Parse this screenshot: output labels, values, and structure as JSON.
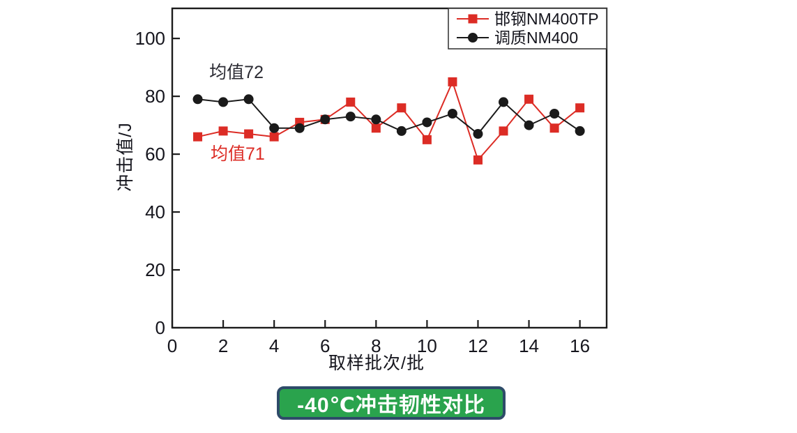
{
  "figure": {
    "badge": {
      "label": "-40℃冲击韧性对比",
      "bg_color": "#2aa34d",
      "border_color": "#2e4b69",
      "text_color": "#ffffff"
    }
  },
  "chart_data": {
    "type": "line",
    "title": "",
    "xlabel": "取样批次/批",
    "ylabel": "冲击值/J",
    "x": [
      1,
      2,
      3,
      4,
      5,
      6,
      7,
      8,
      9,
      10,
      11,
      12,
      13,
      14,
      15,
      16
    ],
    "series": [
      {
        "name": "邯钢NM400TP",
        "marker": "square",
        "color": "#dc2c25",
        "values": [
          66,
          68,
          67,
          66,
          71,
          72,
          78,
          69,
          76,
          65,
          85,
          58,
          68,
          79,
          69,
          76
        ],
        "mean": 71
      },
      {
        "name": "调质NM400",
        "marker": "circle",
        "color": "#1a1a1a",
        "values": [
          79,
          78,
          79,
          69,
          69,
          72,
          73,
          72,
          68,
          71,
          74,
          67,
          78,
          70,
          74,
          68
        ],
        "mean": 72
      }
    ],
    "xticks": [
      0,
      2,
      4,
      6,
      8,
      10,
      12,
      14,
      16
    ],
    "yticks": [
      0,
      20,
      40,
      60,
      80,
      100
    ],
    "xlim": [
      0,
      17.05
    ],
    "ylim": [
      0,
      110.4
    ],
    "grid": false,
    "legend_position": "top-right",
    "annotations": [
      {
        "text": "均值72",
        "color": "#2b2b33",
        "x": 2.52,
        "y": 88.2
      },
      {
        "text": "均值71",
        "color": "#dc2c25",
        "x": 2.57,
        "y": 60.0
      }
    ]
  }
}
